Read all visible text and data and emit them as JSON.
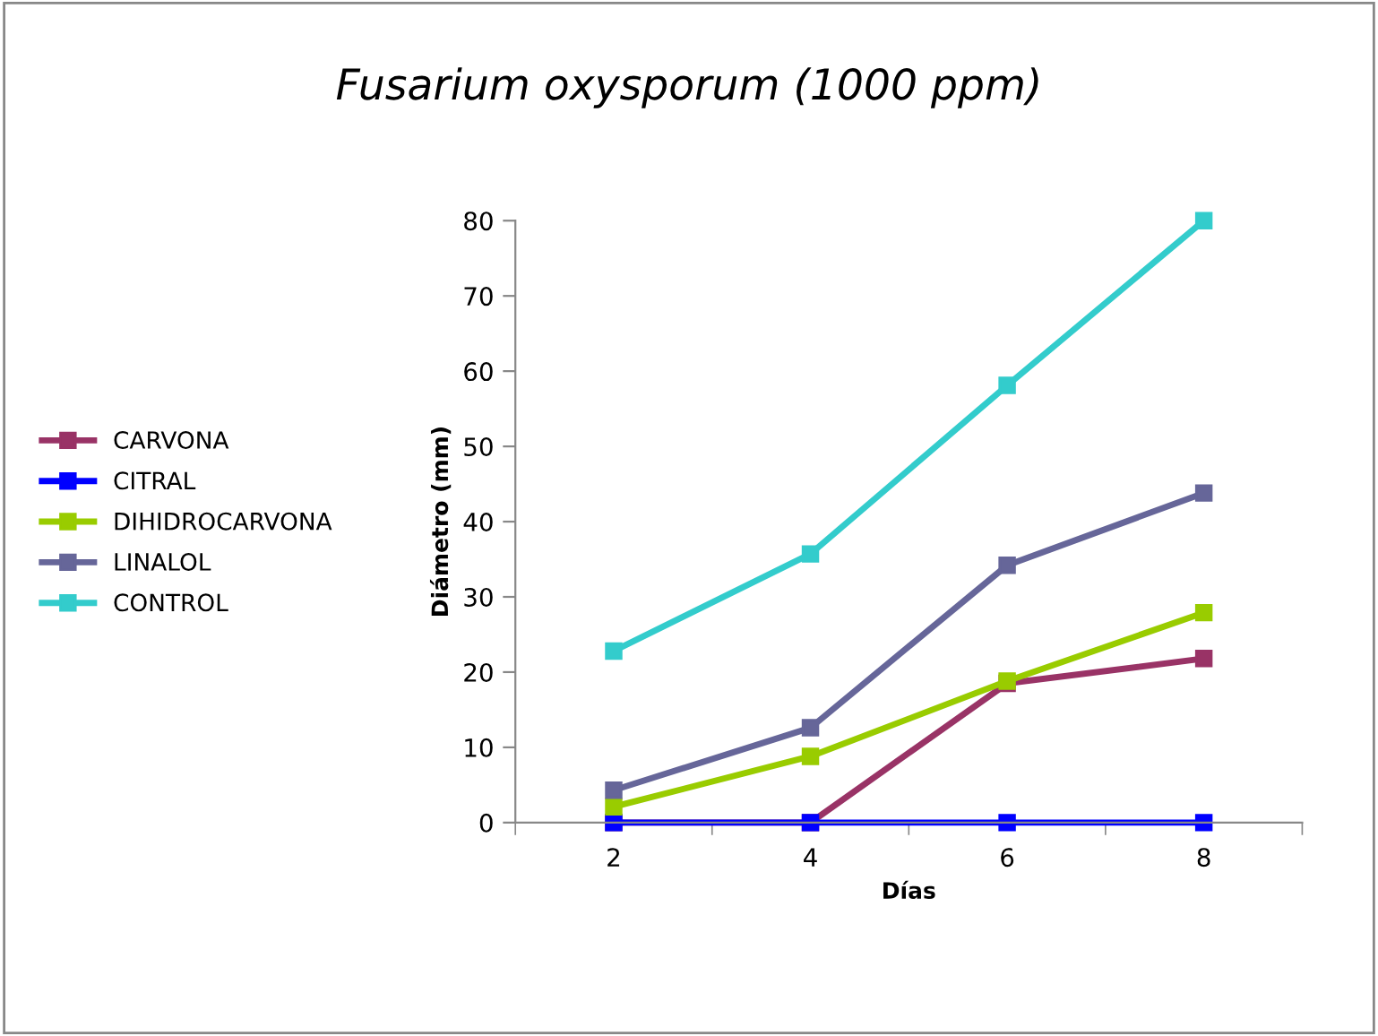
{
  "chart_data": {
    "type": "line",
    "title": "Fusarium oxysporum (1000 ppm)",
    "xlabel": "Días",
    "ylabel": "Diámetro (mm)",
    "categories": [
      "2",
      "4",
      "6",
      "8"
    ],
    "series": [
      {
        "name": "CARVONA",
        "color": "#993366",
        "values": [
          0,
          0,
          18.5,
          21.8
        ]
      },
      {
        "name": "CITRAL",
        "color": "#0000ff",
        "values": [
          0,
          0,
          0,
          0
        ]
      },
      {
        "name": "DIHIDROCARVONA",
        "color": "#99cc00",
        "values": [
          2.1,
          8.8,
          18.8,
          27.9
        ]
      },
      {
        "name": "LINALOL",
        "color": "#666699",
        "values": [
          4.3,
          12.6,
          34.2,
          43.8
        ]
      },
      {
        "name": "CONTROL",
        "color": "#33cccc",
        "values": [
          22.8,
          35.7,
          58.1,
          80
        ]
      }
    ],
    "ylim": [
      0,
      80
    ],
    "yticks": [
      0,
      10,
      20,
      30,
      40,
      50,
      60,
      70,
      80
    ],
    "grid": false,
    "legend": "left",
    "marker": "square",
    "line_style": "solid"
  }
}
